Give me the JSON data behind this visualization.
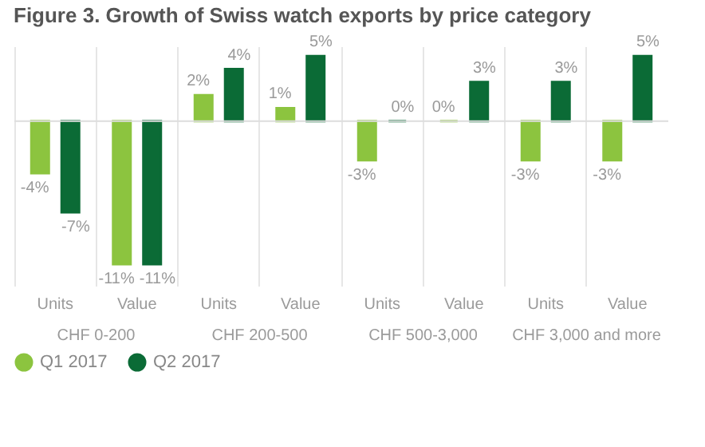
{
  "chart_data": {
    "type": "bar",
    "title": "Figure 3. Growth of Swiss watch exports by price category",
    "categories": [
      "Units",
      "Value",
      "Units",
      "Value",
      "Units",
      "Value",
      "Units",
      "Value"
    ],
    "annotations": [
      "CHF 0-200",
      "CHF 200-500",
      "CHF 500-3,000",
      "CHF 3,000 and more"
    ],
    "series": [
      {
        "name": "Q1 2017",
        "color": "#8cc43f",
        "values": [
          -4,
          -11,
          2,
          1,
          -3,
          0,
          -3,
          -3
        ],
        "value_labels": [
          "-4%",
          "-11%",
          "2%",
          "1%",
          "-3%",
          "0%",
          "-3%",
          "-3%"
        ]
      },
      {
        "name": "Q2 2017",
        "color": "#0b6b36",
        "values": [
          -7,
          -11,
          4,
          5,
          0,
          3,
          3,
          5
        ],
        "value_labels": [
          "-7%",
          "-11%",
          "4%",
          "5%",
          "0%",
          "3%",
          "3%",
          "5%"
        ]
      }
    ],
    "grid": "x",
    "legend": "bottom left"
  }
}
